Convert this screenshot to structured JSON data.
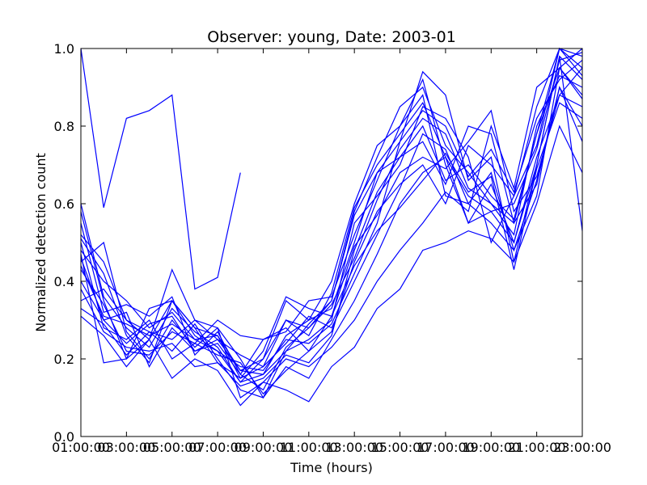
{
  "chart_data": {
    "type": "line",
    "title": "Observer: young, Date: 2003-01",
    "xlabel": "Time (hours)",
    "ylabel": "Normalized detection count",
    "color": "#0000ff",
    "x": [
      1,
      2,
      3,
      4,
      5,
      6,
      7,
      8,
      9,
      10,
      11,
      12,
      13,
      14,
      15,
      16,
      17,
      18,
      19,
      20,
      21,
      22,
      23
    ],
    "xlim": [
      1,
      23
    ],
    "xticks": [
      {
        "value": 1,
        "label": "01:00:00"
      },
      {
        "value": 3,
        "label": "03:00:00"
      },
      {
        "value": 5,
        "label": "05:00:00"
      },
      {
        "value": 7,
        "label": "07:00:00"
      },
      {
        "value": 9,
        "label": "09:00:00"
      },
      {
        "value": 11,
        "label": "11:00:00"
      },
      {
        "value": 13,
        "label": "13:00:00"
      },
      {
        "value": 15,
        "label": "15:00:00"
      },
      {
        "value": 17,
        "label": "17:00:00"
      },
      {
        "value": 19,
        "label": "19:00:00"
      },
      {
        "value": 21,
        "label": "21:00:00"
      },
      {
        "value": 23,
        "label": "23:00:00"
      }
    ],
    "ylim": [
      0,
      1
    ],
    "yticks": [
      {
        "value": 0,
        "label": "0.0"
      },
      0.2,
      0.4,
      0.6,
      0.8,
      {
        "value": 1,
        "label": "1.0"
      }
    ],
    "series": [
      {
        "values": [
          1.0,
          0.59,
          0.82,
          0.84,
          0.88,
          0.38,
          0.41,
          0.68,
          null,
          null,
          null,
          null,
          null,
          null,
          null,
          null,
          null,
          null,
          null,
          null,
          null,
          null,
          null
        ]
      },
      {
        "values": [
          0.52,
          0.45,
          0.3,
          0.25,
          0.35,
          0.28,
          0.26,
          0.15,
          0.18,
          0.3,
          0.28,
          0.35,
          0.58,
          0.72,
          0.85,
          0.9,
          0.75,
          0.68,
          0.6,
          0.55,
          0.78,
          0.95,
          0.88
        ]
      },
      {
        "values": [
          0.48,
          0.4,
          0.35,
          0.28,
          0.32,
          0.25,
          0.22,
          0.14,
          0.16,
          0.26,
          0.3,
          0.4,
          0.6,
          0.75,
          0.8,
          0.92,
          0.7,
          0.55,
          0.65,
          0.5,
          0.7,
          0.98,
          0.92
        ]
      },
      {
        "values": [
          0.45,
          0.5,
          0.27,
          0.2,
          0.3,
          0.23,
          0.28,
          0.2,
          0.1,
          0.22,
          0.25,
          0.3,
          0.55,
          0.62,
          0.7,
          0.85,
          0.82,
          0.72,
          0.5,
          0.62,
          0.85,
          1.0,
          0.95
        ]
      },
      {
        "values": [
          0.58,
          0.35,
          0.2,
          0.25,
          0.43,
          0.3,
          0.25,
          0.17,
          0.2,
          0.35,
          0.3,
          0.33,
          0.5,
          0.68,
          0.72,
          0.76,
          0.65,
          0.8,
          0.78,
          0.55,
          0.65,
          0.9,
          0.8
        ]
      },
      {
        "values": [
          0.4,
          0.3,
          0.32,
          0.18,
          0.28,
          0.22,
          0.24,
          0.16,
          0.25,
          0.28,
          0.22,
          0.27,
          0.45,
          0.58,
          0.65,
          0.7,
          0.6,
          0.75,
          0.7,
          0.62,
          0.75,
          1.0,
          0.98
        ]
      },
      {
        "values": [
          0.35,
          0.38,
          0.3,
          0.27,
          0.22,
          0.29,
          0.2,
          0.12,
          0.1,
          0.18,
          0.15,
          0.25,
          0.35,
          0.47,
          0.6,
          0.68,
          0.72,
          0.55,
          0.58,
          0.5,
          0.72,
          0.88,
          0.85
        ]
      },
      {
        "values": [
          0.5,
          0.28,
          0.25,
          0.3,
          0.2,
          0.24,
          0.3,
          0.26,
          0.25,
          0.27,
          0.35,
          0.36,
          0.52,
          0.66,
          0.8,
          0.88,
          0.62,
          0.6,
          0.68,
          0.48,
          0.62,
          0.95,
          1.0
        ]
      },
      {
        "values": [
          0.47,
          0.19,
          0.2,
          0.33,
          0.35,
          0.26,
          0.22,
          0.18,
          0.17,
          0.25,
          0.24,
          0.29,
          0.42,
          0.55,
          0.76,
          0.94,
          0.88,
          0.66,
          0.72,
          0.45,
          0.6,
          0.8,
          0.68
        ]
      },
      {
        "values": [
          0.33,
          0.29,
          0.21,
          0.27,
          0.25,
          0.3,
          0.28,
          0.1,
          0.14,
          0.2,
          0.18,
          0.23,
          0.3,
          0.4,
          0.48,
          0.55,
          0.63,
          0.58,
          0.8,
          0.64,
          0.9,
          0.95,
          0.87
        ]
      },
      {
        "values": [
          0.55,
          0.32,
          0.34,
          0.31,
          0.36,
          0.21,
          0.27,
          0.16,
          0.12,
          0.23,
          0.28,
          0.34,
          0.46,
          0.61,
          0.74,
          0.82,
          0.78,
          0.64,
          0.6,
          0.52,
          0.8,
          0.93,
          0.9
        ]
      },
      {
        "values": [
          0.43,
          0.34,
          0.22,
          0.21,
          0.27,
          0.24,
          0.21,
          0.19,
          0.11,
          0.17,
          0.22,
          0.31,
          0.49,
          0.57,
          0.68,
          0.72,
          0.69,
          0.76,
          0.84,
          0.58,
          0.67,
          0.88,
          0.95
        ]
      },
      {
        "values": [
          0.31,
          0.26,
          0.18,
          0.25,
          0.15,
          0.2,
          0.17,
          0.08,
          0.14,
          0.12,
          0.09,
          0.18,
          0.23,
          0.33,
          0.38,
          0.48,
          0.5,
          0.53,
          0.51,
          0.45,
          0.7,
          0.98,
          0.53
        ]
      },
      {
        "values": [
          0.6,
          0.36,
          0.28,
          0.23,
          0.33,
          0.27,
          0.23,
          0.14,
          0.2,
          0.3,
          0.26,
          0.37,
          0.59,
          0.7,
          0.78,
          0.86,
          0.72,
          0.62,
          0.58,
          0.6,
          0.74,
          0.97,
          0.99
        ]
      },
      {
        "values": [
          0.46,
          0.3,
          0.24,
          0.29,
          0.31,
          0.22,
          0.25,
          0.21,
          0.18,
          0.24,
          0.31,
          0.28,
          0.4,
          0.52,
          0.64,
          0.78,
          0.74,
          0.6,
          0.55,
          0.48,
          0.66,
          0.9,
          0.76
        ]
      },
      {
        "values": [
          0.51,
          0.42,
          0.26,
          0.19,
          0.35,
          0.28,
          0.19,
          0.13,
          0.15,
          0.21,
          0.19,
          0.26,
          0.48,
          0.63,
          0.72,
          0.8,
          0.66,
          0.7,
          0.62,
          0.56,
          0.78,
          1.0,
          0.93
        ]
      },
      {
        "values": [
          0.38,
          0.27,
          0.23,
          0.22,
          0.24,
          0.18,
          0.19,
          0.15,
          0.22,
          0.36,
          0.33,
          0.31,
          0.44,
          0.53,
          0.59,
          0.66,
          0.73,
          0.63,
          0.67,
          0.43,
          0.69,
          0.86,
          0.82
        ]
      },
      {
        "values": [
          0.44,
          0.31,
          0.29,
          0.26,
          0.29,
          0.25,
          0.26,
          0.17,
          0.16,
          0.22,
          0.29,
          0.35,
          0.57,
          0.68,
          0.76,
          0.84,
          0.8,
          0.67,
          0.74,
          0.63,
          0.82,
          0.92,
          0.97
        ]
      }
    ]
  }
}
